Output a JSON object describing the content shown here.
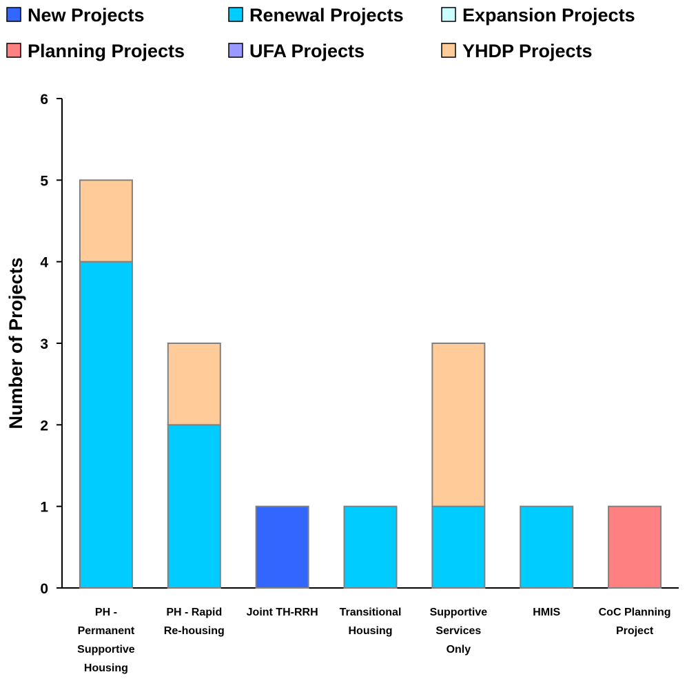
{
  "chart_data": {
    "type": "bar",
    "stacked": true,
    "title": "",
    "xlabel": "",
    "ylabel": "Number of Projects",
    "ylim": [
      0,
      6
    ],
    "yticks": [
      "0",
      "1",
      "2",
      "3",
      "4",
      "5",
      "6"
    ],
    "grid": false,
    "legend_position": "top",
    "categories": [
      [
        "PH -",
        "Permanent",
        "Supportive",
        "Housing"
      ],
      [
        "PH - Rapid",
        "Re-housing"
      ],
      [
        "Joint TH-RRH"
      ],
      [
        "Transitional",
        "Housing"
      ],
      [
        "Supportive",
        "Services",
        "Only"
      ],
      [
        "HMIS"
      ],
      [
        "CoC Planning",
        "Project"
      ]
    ],
    "series": [
      {
        "name": "New Projects",
        "color": "#3366FF",
        "values": [
          0,
          0,
          1,
          0,
          0,
          0,
          0
        ]
      },
      {
        "name": "Renewal Projects",
        "color": "#00CCFF",
        "values": [
          4,
          2,
          0,
          1,
          1,
          1,
          0
        ]
      },
      {
        "name": "Expansion Projects",
        "color": "#CCFFFF",
        "values": [
          0,
          0,
          0,
          0,
          0,
          0,
          0
        ]
      },
      {
        "name": "Planning Projects",
        "color": "#FF8080",
        "values": [
          0,
          0,
          0,
          0,
          0,
          0,
          1
        ]
      },
      {
        "name": "UFA Projects",
        "color": "#9999FF",
        "values": [
          0,
          0,
          0,
          0,
          0,
          0,
          0
        ]
      },
      {
        "name": "YHDP Projects",
        "color": "#FFCC99",
        "values": [
          1,
          1,
          0,
          0,
          2,
          0,
          0
        ]
      }
    ]
  }
}
